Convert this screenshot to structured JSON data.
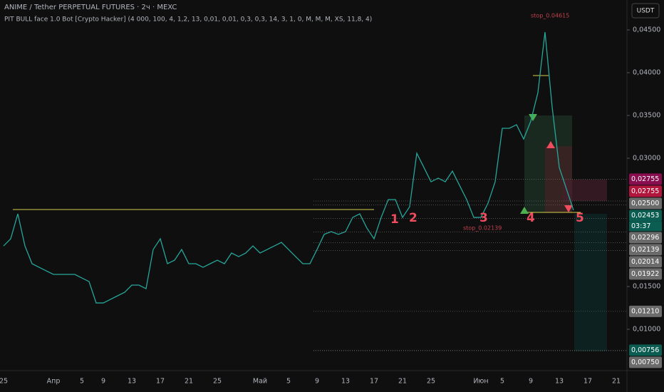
{
  "chart_data": {
    "type": "line",
    "title": "ANIME / Tether PERPETUAL FUTURES · 2ч · MEXC",
    "subtitle": "PIT BULL face 1.0 Bot [Crypto Hacker] (4 000, 100, 4, 1,2, 13, 0,01, 0,01, 0,3, 0,3, 14, 3, 1, 0, M, M, M, XS, 11,8, 4)",
    "currency": "USDT",
    "countdown": "03:37",
    "color": "#26a69a",
    "grid": false,
    "categories": [
      "25",
      null,
      null,
      null,
      null,
      null,
      null,
      "Апр",
      null,
      null,
      null,
      "5",
      null,
      null,
      "9",
      null,
      null,
      null,
      "13",
      null,
      null,
      null,
      "17",
      null,
      null,
      null,
      "21",
      null,
      null,
      null,
      "25",
      null,
      null,
      null,
      null,
      null,
      "Май",
      null,
      null,
      null,
      "5",
      null,
      null,
      null,
      "9",
      null,
      null,
      null,
      "13",
      null,
      null,
      null,
      "17",
      null,
      null,
      null,
      "21",
      null,
      null,
      null,
      "25",
      null,
      null,
      null,
      null,
      null,
      null,
      "Июн",
      null,
      null,
      "5",
      null,
      null,
      null,
      "9",
      null,
      null,
      null,
      "13",
      null,
      null,
      null,
      "17",
      null,
      null,
      null,
      "21",
      null
    ],
    "values": [
      0.01975,
      0.02058,
      0.0235,
      0.01975,
      0.01767,
      0.01725,
      0.01683,
      0.01642,
      0.01642,
      0.01642,
      0.01642,
      0.016,
      0.01558,
      0.01308,
      0.01308,
      0.0135,
      0.01392,
      0.01433,
      0.01517,
      0.01517,
      0.01475,
      0.01933,
      0.02058,
      0.01767,
      0.01808,
      0.01933,
      0.01767,
      0.01767,
      0.01725,
      0.01767,
      0.01808,
      0.01767,
      0.01892,
      0.0185,
      0.01892,
      0.01975,
      0.01892,
      0.01933,
      0.01975,
      0.02017,
      0.01933,
      0.0185,
      0.01767,
      0.01767,
      0.01933,
      0.0211,
      0.02142,
      0.0211,
      0.02142,
      0.02308,
      0.0235,
      0.02183,
      0.02058,
      0.02308,
      0.02517,
      0.02517,
      0.02308,
      0.02433,
      0.03058,
      0.02892,
      0.02725,
      0.02767,
      0.02725,
      0.0285,
      0.02683,
      0.02517,
      0.02308,
      0.02308,
      0.02475,
      0.02725,
      0.0335,
      0.0335,
      0.03392,
      0.03225,
      0.03433,
      0.03767,
      0.04475,
      0.036,
      0.02892,
      0.02642,
      0.02392,
      null,
      null,
      null,
      null,
      null,
      null,
      null
    ],
    "ylim": [
      0.00517,
      0.0485
    ],
    "yticks": [
      {
        "value": 0.01,
        "label": "0,01000"
      },
      {
        "value": 0.015,
        "label": "0,01500"
      },
      {
        "value": 0.03,
        "label": "0,03000"
      },
      {
        "value": 0.035,
        "label": "0,03500"
      },
      {
        "value": 0.04,
        "label": "0,04000"
      },
      {
        "value": 0.045,
        "label": "0,04500"
      }
    ],
    "price_tags": [
      {
        "value": 0.02755,
        "label": "0,02755",
        "color": "#880e4f"
      },
      {
        "value": 0.02755,
        "label": "0,02755",
        "color": "#b2163d"
      },
      {
        "value": 0.025,
        "label": "0,02500",
        "color": "#6b6b6b"
      },
      {
        "value": 0.02453,
        "label": "0,02453",
        "color": "#0b5d52"
      },
      {
        "value": 0.02296,
        "label": "0,02296",
        "color": "#6b6b6b"
      },
      {
        "value": 0.02139,
        "label": "0,02139",
        "color": "#6b6b6b"
      },
      {
        "value": 0.02014,
        "label": "0,02014",
        "color": "#6b6b6b"
      },
      {
        "value": 0.01922,
        "label": "0,01922",
        "color": "#6b6b6b"
      },
      {
        "value": 0.0121,
        "label": "0,01210",
        "color": "#6b6b6b"
      },
      {
        "value": 0.00756,
        "label": "0,00756",
        "color": "#0b5d52"
      },
      {
        "value": 0.0075,
        "label": "0,00750",
        "color": "#6b6b6b"
      }
    ],
    "annotations": [
      "1",
      "2",
      "3",
      "4",
      "5",
      "stop_0.04615",
      "stop_0.02139"
    ]
  }
}
